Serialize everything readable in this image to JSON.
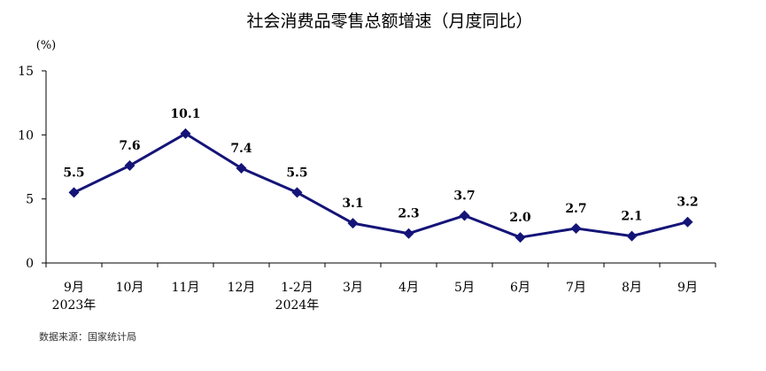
{
  "chart_data": {
    "type": "line",
    "title": "社会消费品零售总额增速（月度同比）",
    "unit_label": "(%)",
    "categories": [
      [
        "9月",
        "2023年"
      ],
      [
        "10月"
      ],
      [
        "11月"
      ],
      [
        "12月"
      ],
      [
        "1-2月",
        "2024年"
      ],
      [
        "3月"
      ],
      [
        "4月"
      ],
      [
        "5月"
      ],
      [
        "6月"
      ],
      [
        "7月"
      ],
      [
        "8月"
      ],
      [
        "9月"
      ]
    ],
    "values": [
      5.5,
      7.6,
      10.1,
      7.4,
      5.5,
      3.1,
      2.3,
      3.7,
      2.0,
      2.7,
      2.1,
      3.2
    ],
    "data_labels": [
      "5.5",
      "7.6",
      "10.1",
      "7.4",
      "5.5",
      "3.1",
      "2.3",
      "3.7",
      "2.0",
      "2.7",
      "2.1",
      "3.2"
    ],
    "ylim": [
      0,
      15
    ],
    "yticks": [
      0,
      5,
      10,
      15
    ],
    "grid": false,
    "line_color": "#141478"
  },
  "source": "数据来源：国家统计局"
}
